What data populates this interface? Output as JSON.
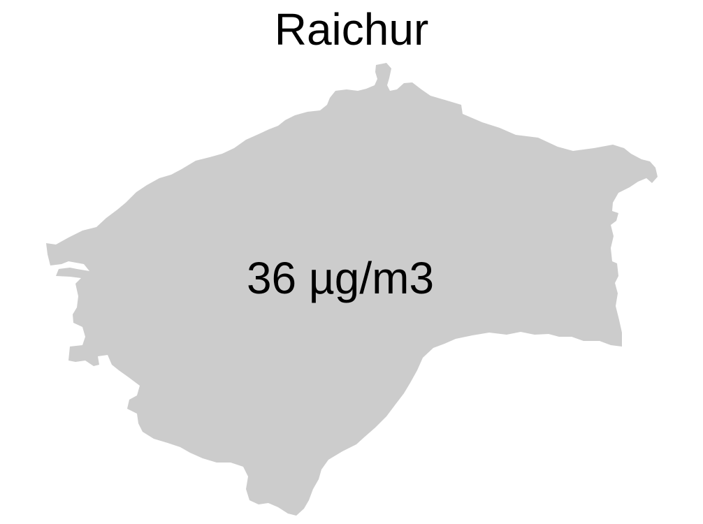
{
  "map": {
    "title": "Raichur",
    "value_label": "36 µg/m3",
    "region_fill": "#cccccc",
    "background": "#ffffff"
  }
}
